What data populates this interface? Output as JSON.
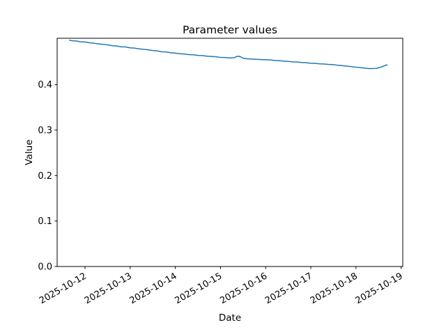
{
  "chart_data": {
    "type": "line",
    "title": "Parameter values",
    "xlabel": "Date",
    "ylabel": "Value",
    "x_unit": "days since 2025-10-12 00:00",
    "xlim": [
      -0.617,
      7.037
    ],
    "ylim": [
      0,
      0.502
    ],
    "grid": false,
    "legend_position": "none",
    "xtick_rotation_deg": 30,
    "xticks": [
      {
        "pos": 0,
        "label": "2025-10-12"
      },
      {
        "pos": 1,
        "label": "2025-10-13"
      },
      {
        "pos": 2,
        "label": "2025-10-14"
      },
      {
        "pos": 3,
        "label": "2025-10-15"
      },
      {
        "pos": 4,
        "label": "2025-10-16"
      },
      {
        "pos": 5,
        "label": "2025-10-17"
      },
      {
        "pos": 6,
        "label": "2025-10-18"
      },
      {
        "pos": 7,
        "label": "2025-10-19"
      }
    ],
    "yticks": [
      {
        "pos": 0.0,
        "label": "0.0"
      },
      {
        "pos": 0.1,
        "label": "0.1"
      },
      {
        "pos": 0.2,
        "label": "0.2"
      },
      {
        "pos": 0.3,
        "label": "0.3"
      },
      {
        "pos": 0.4,
        "label": "0.4"
      }
    ],
    "series": [
      {
        "name": "parameter-value",
        "color": "#1f77b4",
        "linewidth": 1.5,
        "points": [
          [
            -0.34,
            0.4978
          ],
          [
            -0.3,
            0.4967
          ],
          [
            -0.2,
            0.4961
          ],
          [
            -0.1,
            0.4943
          ],
          [
            0,
            0.4939
          ],
          [
            0.1,
            0.492
          ],
          [
            0.2,
            0.4912
          ],
          [
            0.3,
            0.4895
          ],
          [
            0.4,
            0.4887
          ],
          [
            0.5,
            0.4874
          ],
          [
            0.6,
            0.4857
          ],
          [
            0.7,
            0.4852
          ],
          [
            0.8,
            0.4832
          ],
          [
            0.9,
            0.4828
          ],
          [
            1,
            0.481
          ],
          [
            1.1,
            0.4803
          ],
          [
            1.2,
            0.4787
          ],
          [
            1.3,
            0.4778
          ],
          [
            1.4,
            0.4766
          ],
          [
            1.5,
            0.475
          ],
          [
            1.6,
            0.4743
          ],
          [
            1.7,
            0.4724
          ],
          [
            1.8,
            0.4718
          ],
          [
            1.9,
            0.47
          ],
          [
            2,
            0.4693
          ],
          [
            2.1,
            0.4679
          ],
          [
            2.2,
            0.4674
          ],
          [
            2.3,
            0.4661
          ],
          [
            2.4,
            0.4656
          ],
          [
            2.5,
            0.4643
          ],
          [
            2.6,
            0.4639
          ],
          [
            2.7,
            0.4626
          ],
          [
            2.8,
            0.4621
          ],
          [
            2.9,
            0.4613
          ],
          [
            3,
            0.46
          ],
          [
            3.1,
            0.4597
          ],
          [
            3.2,
            0.4586
          ],
          [
            3.3,
            0.4592
          ],
          [
            3.35,
            0.4614
          ],
          [
            3.4,
            0.4626
          ],
          [
            3.45,
            0.4611
          ],
          [
            3.5,
            0.4582
          ],
          [
            3.6,
            0.4566
          ],
          [
            3.7,
            0.4563
          ],
          [
            3.8,
            0.4557
          ],
          [
            3.9,
            0.4552
          ],
          [
            4,
            0.4547
          ],
          [
            4.1,
            0.4543
          ],
          [
            4.2,
            0.4533
          ],
          [
            4.3,
            0.4528
          ],
          [
            4.4,
            0.4517
          ],
          [
            4.5,
            0.4512
          ],
          [
            4.6,
            0.4502
          ],
          [
            4.7,
            0.4498
          ],
          [
            4.8,
            0.4487
          ],
          [
            4.9,
            0.4483
          ],
          [
            5,
            0.4471
          ],
          [
            5.1,
            0.4468
          ],
          [
            5.2,
            0.4458
          ],
          [
            5.3,
            0.4453
          ],
          [
            5.4,
            0.4444
          ],
          [
            5.5,
            0.444
          ],
          [
            5.6,
            0.4426
          ],
          [
            5.7,
            0.4418
          ],
          [
            5.8,
            0.4405
          ],
          [
            5.9,
            0.4397
          ],
          [
            6,
            0.4384
          ],
          [
            6.1,
            0.4375
          ],
          [
            6.2,
            0.4362
          ],
          [
            6.3,
            0.4353
          ],
          [
            6.4,
            0.4356
          ],
          [
            6.45,
            0.4359
          ],
          [
            6.5,
            0.4371
          ],
          [
            6.55,
            0.4384
          ],
          [
            6.6,
            0.4404
          ],
          [
            6.69,
            0.4437
          ]
        ]
      }
    ]
  }
}
